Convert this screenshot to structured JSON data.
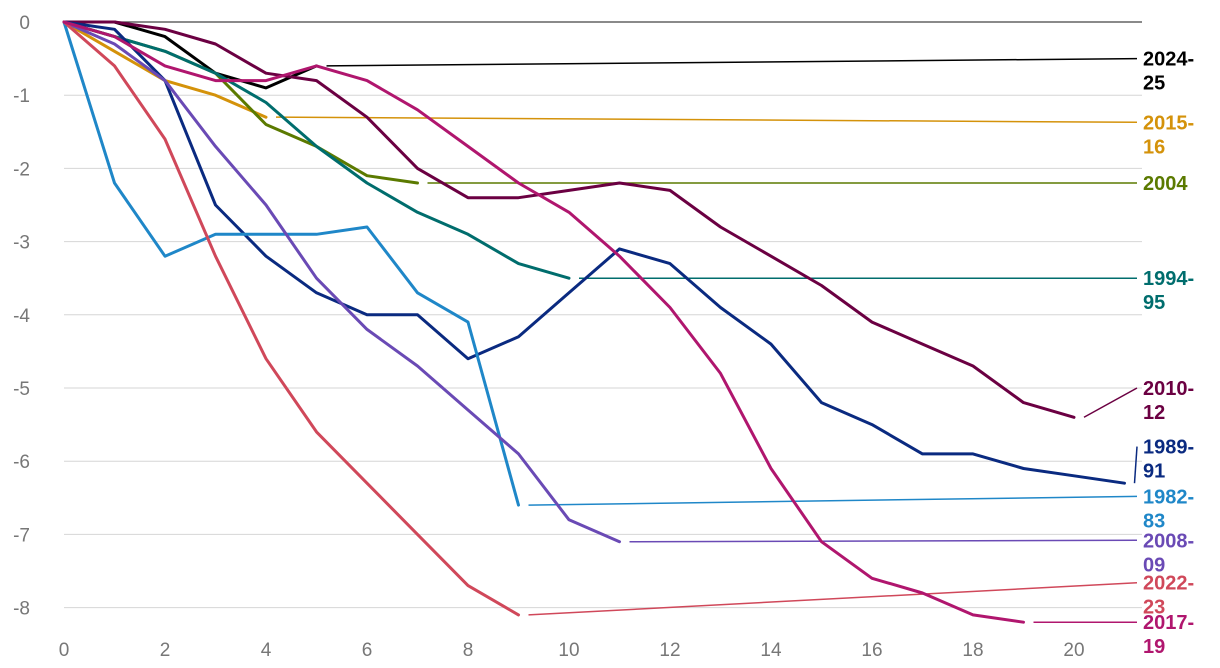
{
  "chart_data": {
    "type": "line",
    "title": "",
    "xlabel": "",
    "ylabel": "",
    "xlim": [
      0,
      21.5
    ],
    "ylim": [
      -8.3,
      0
    ],
    "x_ticks": [
      0,
      2,
      4,
      6,
      8,
      10,
      12,
      14,
      16,
      18,
      20
    ],
    "y_ticks": [
      0,
      -1,
      -2,
      -3,
      -4,
      -5,
      -6,
      -7,
      -8
    ],
    "grid": true,
    "legend": "right-side direct labels",
    "series": [
      {
        "name": "2024-25",
        "color": "#000000",
        "x": [
          0,
          1,
          2,
          3,
          4,
          5
        ],
        "y": [
          0,
          0,
          -0.2,
          -0.7,
          -0.9,
          -0.6
        ],
        "label_lines": [
          "2024-",
          "25"
        ],
        "label_y": -0.5
      },
      {
        "name": "2015-16",
        "color": "#d4920a",
        "x": [
          0,
          1,
          2,
          3,
          4
        ],
        "y": [
          0,
          -0.4,
          -0.8,
          -1.0,
          -1.3
        ],
        "label_lines": [
          "2015-",
          "16"
        ],
        "label_y": -1.37
      },
      {
        "name": "2004",
        "color": "#5b7a00",
        "x": [
          0,
          1,
          2,
          3,
          4,
          5,
          6,
          7
        ],
        "y": [
          0,
          -0.2,
          -0.4,
          -0.7,
          -1.4,
          -1.7,
          -2.1,
          -2.2
        ],
        "label_lines": [
          "2004"
        ],
        "label_y": -2.2
      },
      {
        "name": "1994-95",
        "color": "#006d6d",
        "x": [
          0,
          1,
          2,
          3,
          4,
          5,
          6,
          7,
          8,
          9,
          10
        ],
        "y": [
          0,
          -0.2,
          -0.4,
          -0.7,
          -1.1,
          -1.7,
          -2.2,
          -2.6,
          -2.9,
          -3.3,
          -3.5
        ],
        "label_lines": [
          "1994-",
          "95"
        ],
        "label_y": -3.5
      },
      {
        "name": "2010-12",
        "color": "#6b0042",
        "x": [
          0,
          1,
          2,
          3,
          4,
          5,
          6,
          7,
          8,
          9,
          10,
          11,
          12,
          13,
          14,
          15,
          16,
          17,
          18,
          19,
          20
        ],
        "y": [
          0,
          0,
          -0.1,
          -0.3,
          -0.7,
          -0.8,
          -1.3,
          -2.0,
          -2.4,
          -2.4,
          -2.3,
          -2.2,
          -2.3,
          -2.8,
          -3.2,
          -3.6,
          -4.1,
          -4.4,
          -4.7,
          -5.2,
          -5.4
        ],
        "label_lines": [
          "2010-",
          "12"
        ],
        "label_y": -5.0
      },
      {
        "name": "1989-91",
        "color": "#0a2a80",
        "x": [
          0,
          1,
          2,
          3,
          4,
          5,
          6,
          7,
          8,
          9,
          10,
          11,
          12,
          13,
          14,
          15,
          16,
          17,
          18,
          19,
          20,
          21
        ],
        "y": [
          0,
          -0.1,
          -0.8,
          -2.5,
          -3.2,
          -3.7,
          -4.0,
          -4.0,
          -4.6,
          -4.3,
          -3.7,
          -3.1,
          -3.3,
          -3.9,
          -4.4,
          -5.2,
          -5.5,
          -5.9,
          -5.9,
          -6.1,
          -6.2,
          -6.3
        ],
        "label_lines": [
          "1989-",
          "91"
        ],
        "label_y": -5.8
      },
      {
        "name": "1982-83",
        "color": "#1f87c8",
        "x": [
          0,
          1,
          2,
          3,
          4,
          5,
          6,
          7,
          8,
          9
        ],
        "y": [
          0,
          -2.2,
          -3.2,
          -2.9,
          -2.9,
          -2.9,
          -2.8,
          -3.7,
          -4.1,
          -6.6
        ],
        "label_lines": [
          "1982-",
          "83"
        ],
        "label_y": -6.48
      },
      {
        "name": "2008-09",
        "color": "#6a4ab5",
        "x": [
          0,
          1,
          2,
          3,
          4,
          5,
          6,
          7,
          8,
          9,
          10,
          11
        ],
        "y": [
          0,
          -0.3,
          -0.8,
          -1.7,
          -2.5,
          -3.5,
          -4.2,
          -4.7,
          -5.3,
          -5.9,
          -6.8,
          -7.1
        ],
        "label_lines": [
          "2008-",
          "09"
        ],
        "label_y": -7.08
      },
      {
        "name": "2022-23",
        "color": "#d0485a",
        "x": [
          0,
          1,
          2,
          3,
          4,
          5,
          6,
          7,
          8,
          9
        ],
        "y": [
          0,
          -0.6,
          -1.6,
          -3.2,
          -4.6,
          -5.6,
          -6.3,
          -7.0,
          -7.7,
          -8.1
        ],
        "label_lines": [
          "2022-",
          "23"
        ],
        "label_y": -7.66
      },
      {
        "name": "2017-19",
        "color": "#b0166e",
        "x": [
          0,
          1,
          2,
          3,
          4,
          5,
          6,
          7,
          8,
          9,
          10,
          11,
          12,
          13,
          14,
          15,
          16,
          17,
          18,
          19
        ],
        "y": [
          0,
          -0.2,
          -0.6,
          -0.8,
          -0.8,
          -0.6,
          -0.8,
          -1.2,
          -1.7,
          -2.2,
          -2.6,
          -3.2,
          -3.9,
          -4.8,
          -6.1,
          -7.1,
          -7.6,
          -7.8,
          -8.1,
          -8.2
        ],
        "label_lines": [
          "2017-",
          "19"
        ],
        "label_y": -8.2
      }
    ]
  }
}
